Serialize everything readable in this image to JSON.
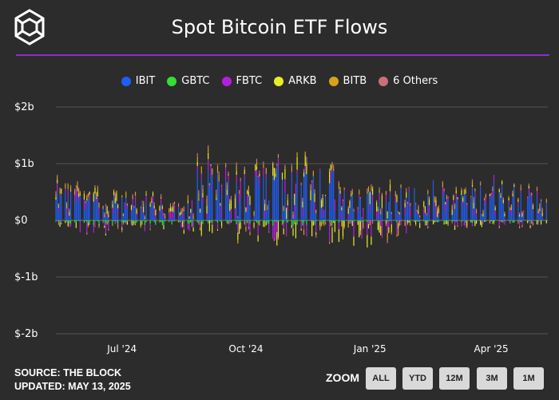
{
  "title": "Spot Bitcoin ETF Flows",
  "legend": [
    {
      "label": "IBIT",
      "color": "#1f5ef5"
    },
    {
      "label": "GBTC",
      "color": "#33e033"
    },
    {
      "label": "FBTC",
      "color": "#b31fe0"
    },
    {
      "label": "ARKB",
      "color": "#e8ed2a"
    },
    {
      "label": "BITB",
      "color": "#d9a21a"
    },
    {
      "label": "6 Others",
      "color": "#cc6f7a"
    }
  ],
  "footer": {
    "source": "SOURCE: THE BLOCK",
    "updated": "UPDATED: MAY 13, 2025"
  },
  "zoom": {
    "label": "ZOOM",
    "buttons": [
      "ALL",
      "YTD",
      "12M",
      "3M",
      "1M"
    ]
  },
  "chart_data": {
    "type": "bar",
    "stacked": true,
    "title": "Spot Bitcoin ETF Flows",
    "y_unit": "$b",
    "ylim": [
      -2,
      2
    ],
    "y_ticks": [
      {
        "value": 2,
        "label": "$2b"
      },
      {
        "value": 1,
        "label": "$1b"
      },
      {
        "value": 0,
        "label": "$0"
      },
      {
        "value": -1,
        "label": "$-1b"
      },
      {
        "value": -2,
        "label": "$-2b"
      }
    ],
    "x_range": [
      "2024-05-13",
      "2025-05-13"
    ],
    "x_ticks": [
      {
        "date": "2024-07-01",
        "label": "Jul '24"
      },
      {
        "date": "2024-10-01",
        "label": "Oct '24"
      },
      {
        "date": "2025-01-01",
        "label": "Jan '25"
      },
      {
        "date": "2025-04-01",
        "label": "Apr '25"
      }
    ],
    "grid": true,
    "legend_position": "top",
    "series": [
      {
        "name": "IBIT",
        "color": "#1f5ef5",
        "values": [
          [
            0.05,
            0.1,
            0.3,
            0.55
          ],
          [
            0.02,
            0.04,
            0.2,
            0.4
          ],
          [
            0.0,
            0.1,
            0.45,
            1.0
          ],
          [
            0.0,
            0.2,
            0.6,
            1.1
          ],
          [
            0.0,
            0.1,
            0.3,
            0.6
          ],
          [
            0.05,
            0.1,
            0.3,
            0.75
          ],
          [
            0.05,
            0.1,
            0.3,
            0.8
          ]
        ]
      },
      {
        "name": "GBTC",
        "color": "#33e033",
        "values": [
          [
            -0.1,
            -0.05,
            -0.02,
            0.0
          ],
          [
            -0.1,
            -0.05,
            -0.02,
            0.0
          ],
          [
            -0.08,
            -0.04,
            -0.02,
            0.0
          ],
          [
            -0.1,
            -0.05,
            -0.02,
            0.0
          ],
          [
            -0.05,
            -0.03,
            -0.01,
            0.0
          ],
          [
            -0.05,
            -0.03,
            -0.01,
            0.0
          ],
          [
            -0.05,
            -0.03,
            -0.01,
            0.0
          ]
        ]
      },
      {
        "name": "FBTC",
        "color": "#b31fe0",
        "values": [
          [
            -0.2,
            -0.05,
            0.05,
            0.2
          ],
          [
            -0.15,
            -0.05,
            0.05,
            0.15
          ],
          [
            -0.2,
            -0.05,
            0.1,
            0.35
          ],
          [
            -0.4,
            -0.1,
            0.1,
            0.3
          ],
          [
            -0.3,
            -0.1,
            0.05,
            0.2
          ],
          [
            -0.1,
            0.0,
            0.05,
            0.2
          ],
          [
            -0.1,
            0.0,
            0.05,
            0.15
          ]
        ]
      },
      {
        "name": "ARKB",
        "color": "#e8ed2a",
        "values": [
          [
            -0.1,
            -0.02,
            0.05,
            0.15
          ],
          [
            -0.1,
            -0.02,
            0.03,
            0.12
          ],
          [
            -0.25,
            -0.05,
            0.05,
            0.2
          ],
          [
            -0.3,
            -0.05,
            0.1,
            0.25
          ],
          [
            -0.3,
            -0.05,
            0.05,
            0.25
          ],
          [
            -0.1,
            -0.02,
            0.03,
            0.15
          ],
          [
            -0.1,
            -0.02,
            0.03,
            0.1
          ]
        ]
      },
      {
        "name": "BITB",
        "color": "#d9a21a",
        "values": [
          [
            -0.05,
            0.0,
            0.05,
            0.1
          ],
          [
            -0.05,
            0.0,
            0.03,
            0.08
          ],
          [
            -0.1,
            0.0,
            0.05,
            0.15
          ],
          [
            -0.1,
            0.0,
            0.05,
            0.12
          ],
          [
            -0.15,
            -0.03,
            0.03,
            0.1
          ],
          [
            -0.05,
            0.0,
            0.03,
            0.08
          ],
          [
            -0.05,
            0.0,
            0.03,
            0.08
          ]
        ]
      },
      {
        "name": "6 Others",
        "color": "#cc6f7a",
        "values": [
          [
            -0.05,
            0.0,
            0.02,
            0.05
          ],
          [
            -0.05,
            0.0,
            0.02,
            0.05
          ],
          [
            -0.05,
            0.0,
            0.03,
            0.08
          ],
          [
            -0.05,
            0.0,
            0.03,
            0.08
          ],
          [
            -0.05,
            0.0,
            0.02,
            0.06
          ],
          [
            -0.03,
            0.0,
            0.02,
            0.05
          ],
          [
            -0.03,
            0.0,
            0.02,
            0.05
          ]
        ]
      }
    ]
  }
}
